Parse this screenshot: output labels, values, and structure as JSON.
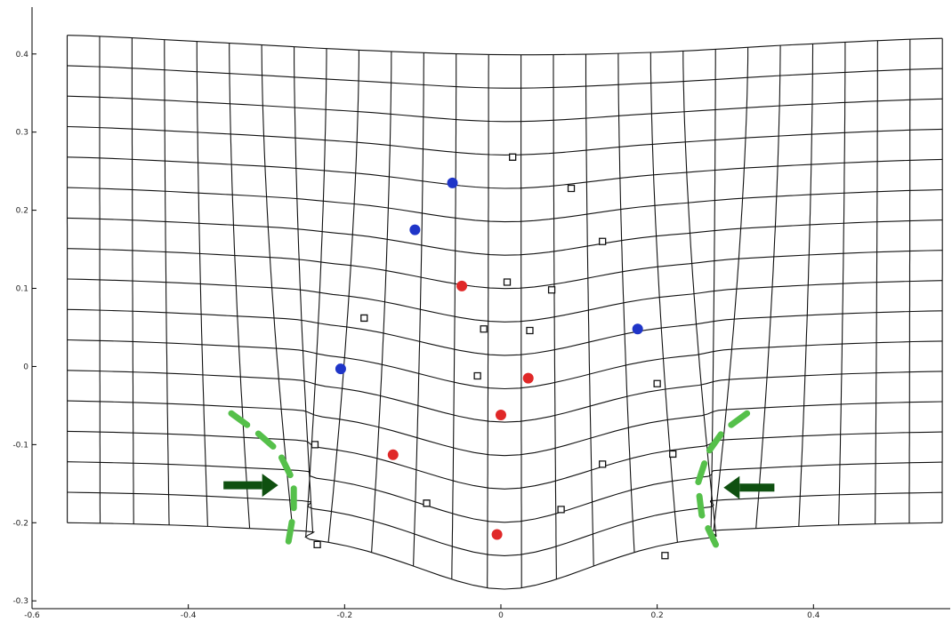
{
  "chart_data": {
    "type": "scatter",
    "title": "",
    "xlabel": "",
    "ylabel": "",
    "xlim": [
      -0.6,
      0.575
    ],
    "ylim": [
      -0.31,
      0.46
    ],
    "x_ticks": [
      -0.6,
      -0.4,
      -0.2,
      0,
      0.2,
      0.4
    ],
    "y_ticks": [
      -0.3,
      -0.2,
      -0.1,
      0,
      0.1,
      0.2,
      0.3,
      0.4
    ],
    "x_tick_labels": [
      "-0.6",
      "-0.4",
      "-0.2",
      "0",
      "0.2",
      "0.4"
    ],
    "y_tick_labels": [
      "-0.3",
      "-0.2",
      "-0.1",
      "0",
      "0.1",
      "0.2",
      "0.3",
      "0.4"
    ],
    "grid": false,
    "deformed_mesh": {
      "columns": 27,
      "rows": 16,
      "x_range": [
        -0.555,
        0.565
      ],
      "y_top_edge": [
        0.424,
        0.415,
        0.405,
        0.399,
        0.402,
        0.412,
        0.42
      ],
      "y_bottom_edge": [
        -0.2,
        -0.206,
        -0.225,
        -0.285,
        -0.225,
        -0.206,
        -0.2
      ],
      "pinch_regions": [
        {
          "center_x": -0.245,
          "strength": 0.05
        },
        {
          "center_x": 0.27,
          "strength": 0.05
        }
      ],
      "color": "#111111"
    },
    "series": [
      {
        "marker": "filled-circle",
        "color": "#1f35c8",
        "x": [
          -0.062,
          -0.11,
          0.175,
          -0.205
        ],
        "y": [
          0.235,
          0.175,
          0.048,
          -0.003
        ]
      },
      {
        "marker": "filled-circle",
        "color": "#e02828",
        "x": [
          -0.05,
          0.035,
          0.0,
          -0.138,
          -0.005
        ],
        "y": [
          0.103,
          -0.015,
          -0.062,
          -0.113,
          -0.215
        ]
      },
      {
        "marker": "open-square",
        "color": "#111111",
        "x": [
          0.015,
          0.09,
          0.13,
          0.008,
          0.065,
          -0.175,
          -0.022,
          0.037,
          -0.03,
          0.2,
          -0.238,
          0.22,
          0.13,
          -0.095,
          0.077,
          -0.235,
          0.21
        ],
        "y": [
          0.268,
          0.228,
          0.16,
          0.108,
          0.098,
          0.062,
          0.048,
          0.046,
          -0.012,
          -0.022,
          -0.1,
          -0.112,
          -0.125,
          -0.175,
          -0.183,
          -0.228,
          -0.242
        ]
      }
    ],
    "annotations": [
      {
        "shape": "dashed-arc",
        "color": "#55c04a",
        "side": "left",
        "points": [
          [
            -0.345,
            -0.06
          ],
          [
            -0.315,
            -0.082
          ],
          [
            -0.285,
            -0.108
          ],
          [
            -0.265,
            -0.148
          ],
          [
            -0.265,
            -0.185
          ],
          [
            -0.272,
            -0.225
          ]
        ]
      },
      {
        "shape": "dashed-arc",
        "color": "#55c04a",
        "side": "right",
        "points": [
          [
            0.315,
            -0.06
          ],
          [
            0.285,
            -0.082
          ],
          [
            0.265,
            -0.11
          ],
          [
            0.252,
            -0.15
          ],
          [
            0.257,
            -0.19
          ],
          [
            0.275,
            -0.228
          ]
        ]
      },
      {
        "shape": "arrow",
        "color": "#0f5010",
        "direction": "right",
        "from": [
          -0.355,
          -0.152
        ],
        "to": [
          -0.285,
          -0.152
        ]
      },
      {
        "shape": "arrow",
        "color": "#0f5010",
        "direction": "left",
        "from": [
          0.35,
          -0.155
        ],
        "to": [
          0.285,
          -0.155
        ]
      }
    ]
  }
}
